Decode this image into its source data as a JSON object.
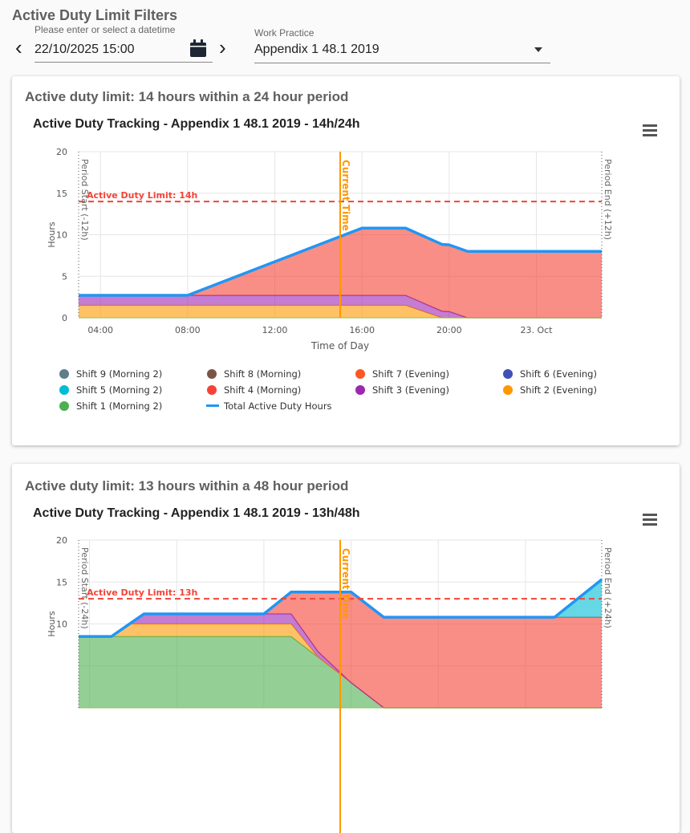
{
  "filters": {
    "title": "Active Duty Limit Filters",
    "datetime_helper": "Please enter or select a datetime",
    "datetime_value": "22/10/2025 15:00",
    "work_practice_label": "Work Practice",
    "work_practice_value": "Appendix 1 48.1 2019",
    "icons": [
      "chevron-left-icon",
      "calendar-icon",
      "chevron-right-icon",
      "caret-down-icon"
    ]
  },
  "legend": [
    {
      "label": "Shift 9 (Morning 2)",
      "color": "#607d8b"
    },
    {
      "label": "Shift 8 (Morning)",
      "color": "#795548"
    },
    {
      "label": "Shift 7 (Evening)",
      "color": "#ff5722"
    },
    {
      "label": "Shift 6 (Evening)",
      "color": "#3f51b5"
    },
    {
      "label": "Shift 5 (Morning 2)",
      "color": "#00bcd4"
    },
    {
      "label": "Shift 4 (Morning)",
      "color": "#f44336"
    },
    {
      "label": "Shift 3 (Evening)",
      "color": "#9c27b0"
    },
    {
      "label": "Shift 2 (Evening)",
      "color": "#ff9800"
    },
    {
      "label": "Shift 1 (Morning 2)",
      "color": "#4caf50"
    },
    {
      "label": "Total Active Duty Hours",
      "color": "#2196f3",
      "line": true
    }
  ],
  "cards": [
    {
      "title": "Active duty limit: 14 hours within a 24 hour period",
      "chart_title": "Active Duty Tracking - Appendix 1 48.1 2019 - 14h/24h",
      "show_legend": true
    },
    {
      "title": "Active duty limit: 13 hours within a 48 hour period",
      "chart_title": "Active Duty Tracking - Appendix 1 48.1 2019 - 13h/48h",
      "show_legend": false
    }
  ],
  "chart_data": [
    {
      "type": "area",
      "stacked": true,
      "xlabel": "Time of Day",
      "ylabel": "Hours",
      "xlim": [
        "2025-10-22 03:00",
        "2025-10-23 03:00"
      ],
      "ylim": [
        0,
        20
      ],
      "grid": true,
      "yticks": [
        0,
        5,
        10,
        15,
        20
      ],
      "xticks": [
        {
          "t": "2025-10-22 04:00",
          "label": "04:00"
        },
        {
          "t": "2025-10-22 08:00",
          "label": "08:00"
        },
        {
          "t": "2025-10-22 12:00",
          "label": "12:00"
        },
        {
          "t": "2025-10-22 16:00",
          "label": "16:00"
        },
        {
          "t": "2025-10-22 20:00",
          "label": "20:00"
        },
        {
          "t": "2025-10-23 00:00",
          "label": "23. Oct"
        }
      ],
      "limit": {
        "value": 14,
        "label": "Active Duty Limit: 14h",
        "color": "#f44336"
      },
      "current_time": {
        "t": "2025-10-22 15:00",
        "label": "Current Time",
        "color": "#ff9800"
      },
      "period_start_label": "Period Start (-12h)",
      "period_end_label": "Period End (+12h)",
      "series": [
        {
          "legend": 7,
          "points": [
            [
              "2025-10-22 03:00",
              1.5
            ],
            [
              "2025-10-22 18:00",
              1.5
            ],
            [
              "2025-10-22 19:40",
              0
            ]
          ]
        },
        {
          "legend": 6,
          "points": [
            [
              "2025-10-22 03:00",
              1.2
            ],
            [
              "2025-10-22 18:00",
              1.2
            ],
            [
              "2025-10-22 19:40",
              0.8
            ],
            [
              "2025-10-22 20:00",
              0.75
            ],
            [
              "2025-10-22 20:50",
              0
            ]
          ]
        },
        {
          "legend": 5,
          "points": [
            [
              "2025-10-22 08:00",
              0
            ],
            [
              "2025-10-22 16:00",
              8.1
            ],
            [
              "2025-10-22 18:00",
              8.1
            ],
            [
              "2025-10-22 21:00",
              8.0
            ],
            [
              "2025-10-23 03:00",
              8.0
            ]
          ]
        }
      ],
      "total_color": "#2196f3"
    },
    {
      "type": "area",
      "stacked": true,
      "ylabel": "Hours",
      "xlim": [
        "2025-10-21 15:00",
        "2025-10-23 15:00"
      ],
      "ylim": [
        0,
        20
      ],
      "grid": true,
      "yticks": [
        10,
        15,
        20
      ],
      "xgrid": [
        "2025-10-21 16:00",
        "2025-10-22 00:00",
        "2025-10-22 08:00",
        "2025-10-22 16:00",
        "2025-10-23 00:00",
        "2025-10-23 08:00"
      ],
      "limit": {
        "value": 13,
        "label": "Active Duty Limit: 13h",
        "color": "#f44336"
      },
      "current_time": {
        "t": "2025-10-22 15:00",
        "label": "Current Time",
        "color": "#ff9800"
      },
      "period_start_label": "Period Start (-24h)",
      "period_end_label": "Period End (+24h)",
      "series": [
        {
          "legend": 8,
          "points": [
            [
              "2025-10-21 15:00",
              8.5
            ],
            [
              "2025-10-22 10:30",
              8.5
            ],
            [
              "2025-10-22 19:00",
              0
            ]
          ]
        },
        {
          "legend": 7,
          "points": [
            [
              "2025-10-21 18:00",
              0
            ],
            [
              "2025-10-21 19:40",
              1.5
            ],
            [
              "2025-10-22 10:30",
              1.5
            ],
            [
              "2025-10-22 13:00",
              0
            ]
          ]
        },
        {
          "legend": 6,
          "points": [
            [
              "2025-10-21 19:40",
              0
            ],
            [
              "2025-10-21 21:00",
              1.2
            ],
            [
              "2025-10-22 10:30",
              1.2
            ],
            [
              "2025-10-22 16:00",
              0
            ]
          ]
        },
        {
          "legend": 5,
          "points": [
            [
              "2025-10-22 08:00",
              0
            ],
            [
              "2025-10-22 10:30",
              2.6
            ],
            [
              "2025-10-22 13:00",
              7.15
            ],
            [
              "2025-10-22 16:00",
              10.8
            ],
            [
              "2025-10-23 15:00",
              10.8
            ]
          ]
        },
        {
          "legend": 4,
          "points": [
            [
              "2025-10-23 10:40",
              0
            ],
            [
              "2025-10-23 15:00",
              4.5
            ]
          ]
        }
      ],
      "total_color": "#2196f3"
    }
  ]
}
